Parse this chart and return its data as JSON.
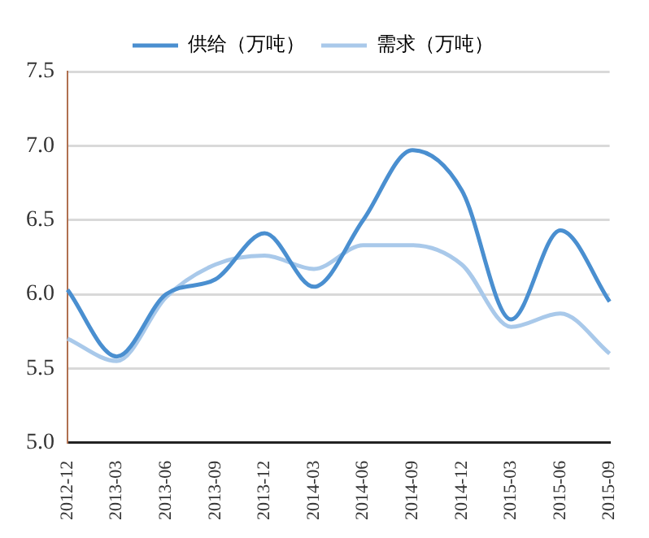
{
  "chart_data": {
    "type": "line",
    "categories": [
      "2012-12",
      "2013-03",
      "2013-06",
      "2013-09",
      "2013-12",
      "2014-03",
      "2014-06",
      "2014-09",
      "2014-12",
      "2015-03",
      "2015-06",
      "2015-09"
    ],
    "series": [
      {
        "name": "供给（万吨）",
        "color": "#4a8fd0",
        "values": [
          6.03,
          5.58,
          6.0,
          6.1,
          6.41,
          6.05,
          6.5,
          6.97,
          6.7,
          5.83,
          6.43,
          5.95
        ]
      },
      {
        "name": "需求（万吨）",
        "color": "#a9c9ea",
        "values": [
          5.7,
          5.55,
          5.98,
          6.2,
          6.26,
          6.17,
          6.33,
          6.33,
          6.2,
          5.78,
          5.87,
          5.6
        ]
      }
    ],
    "ylim": [
      5.0,
      7.5
    ],
    "yticks": [
      {
        "value": 5,
        "label": "5.0"
      },
      5.5,
      {
        "value": 6,
        "label": "6.0"
      },
      6.5,
      {
        "value": 7,
        "label": "7.0"
      },
      7.5
    ],
    "grid": "y",
    "legend": "top",
    "marker": "none",
    "line_style": "solid"
  }
}
